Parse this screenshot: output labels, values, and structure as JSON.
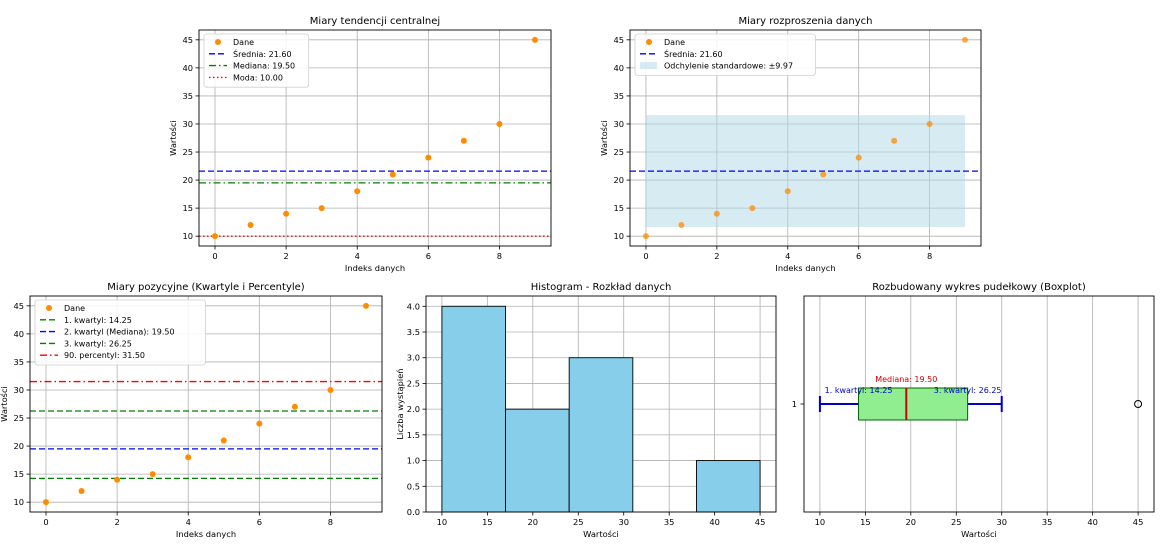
{
  "colors": {
    "data_point": "#ff8c00",
    "mean": "#0000ff",
    "median": "#008000",
    "mode": "#ff0000",
    "quartile": "#008000",
    "percentile": "#ff0000",
    "std_band": "#add8e6",
    "hist_bar": "#87ceeb",
    "box_fill": "#90ee90",
    "box_edge": "#0000cd",
    "grid": "#b0b0b0"
  },
  "chart_data": [
    {
      "id": "central",
      "type": "scatter",
      "title": "Miary tendencji centralnej",
      "xlabel": "Indeks danych",
      "ylabel": "Wartości",
      "x": [
        0,
        1,
        2,
        3,
        4,
        5,
        6,
        7,
        8,
        9
      ],
      "y": [
        10,
        12,
        14,
        15,
        18,
        21,
        24,
        27,
        30,
        45
      ],
      "xlim": [
        -0.45,
        9.45
      ],
      "ylim": [
        8.25,
        46.75
      ],
      "xticks": [
        0,
        2,
        4,
        6,
        8
      ],
      "yticks": [
        10,
        15,
        20,
        25,
        30,
        35,
        40,
        45
      ],
      "grid": true,
      "legend_position": "upper-left",
      "series_label": "Dane",
      "hlines": [
        {
          "label": "Średnia: 21.60",
          "value": 21.6,
          "color": "#0000ff",
          "dash": "dashed"
        },
        {
          "label": "Mediana: 19.50",
          "value": 19.5,
          "color": "#008000",
          "dash": "dashdot"
        },
        {
          "label": "Moda: 10.00",
          "value": 10.0,
          "color": "#ff0000",
          "dash": "dotted"
        }
      ]
    },
    {
      "id": "dispersion",
      "type": "scatter",
      "title": "Miary rozproszenia danych",
      "xlabel": "Indeks danych",
      "ylabel": "Wartości",
      "x": [
        0,
        1,
        2,
        3,
        4,
        5,
        6,
        7,
        8,
        9
      ],
      "y": [
        10,
        12,
        14,
        15,
        18,
        21,
        24,
        27,
        30,
        45
      ],
      "xlim": [
        -0.45,
        9.45
      ],
      "ylim": [
        8.25,
        46.75
      ],
      "xticks": [
        0,
        2,
        4,
        6,
        8
      ],
      "yticks": [
        10,
        15,
        20,
        25,
        30,
        35,
        40,
        45
      ],
      "grid": true,
      "legend_position": "upper-left",
      "series_label": "Dane",
      "hlines": [
        {
          "label": "Średnia: 21.60",
          "value": 21.6,
          "color": "#0000ff",
          "dash": "dashed"
        }
      ],
      "band": {
        "label": "Odchylenie standardowe: ±9.97",
        "low": 11.63,
        "high": 31.57,
        "x_from": 0,
        "x_to": 9
      }
    },
    {
      "id": "positional",
      "type": "scatter",
      "title": "Miary pozycyjne (Kwartyle i Percentyle)",
      "xlabel": "Indeks danych",
      "ylabel": "Wartości",
      "x": [
        0,
        1,
        2,
        3,
        4,
        5,
        6,
        7,
        8,
        9
      ],
      "y": [
        10,
        12,
        14,
        15,
        18,
        21,
        24,
        27,
        30,
        45
      ],
      "xlim": [
        -0.45,
        9.45
      ],
      "ylim": [
        8.25,
        46.75
      ],
      "xticks": [
        0,
        2,
        4,
        6,
        8
      ],
      "yticks": [
        10,
        15,
        20,
        25,
        30,
        35,
        40,
        45
      ],
      "grid": true,
      "legend_position": "upper-left",
      "series_label": "Dane",
      "hlines": [
        {
          "label": "1. kwartyl: 14.25",
          "value": 14.25,
          "color": "#008000",
          "dash": "dashed"
        },
        {
          "label": "2. kwartyl (Mediana): 19.50",
          "value": 19.5,
          "color": "#0000ff",
          "dash": "dashed"
        },
        {
          "label": "3. kwartyl: 26.25",
          "value": 26.25,
          "color": "#008000",
          "dash": "dashed"
        },
        {
          "label": "90. percentyl: 31.50",
          "value": 31.5,
          "color": "#ff0000",
          "dash": "dashdot"
        }
      ]
    },
    {
      "id": "histogram",
      "type": "bar",
      "title": "Histogram - Rozkład danych",
      "xlabel": "Wartości",
      "ylabel": "Liczba wystąpień",
      "bins": [
        [
          10,
          17,
          4
        ],
        [
          17,
          24,
          2
        ],
        [
          24,
          31,
          3
        ],
        [
          31,
          38,
          0
        ],
        [
          38,
          45,
          1
        ]
      ],
      "xlim": [
        8.25,
        46.75
      ],
      "ylim": [
        0,
        4.2
      ],
      "xticks": [
        10,
        15,
        20,
        25,
        30,
        35,
        40,
        45
      ],
      "yticks": [
        0.0,
        0.5,
        1.0,
        1.5,
        2.0,
        2.5,
        3.0,
        3.5,
        4.0
      ],
      "grid": true
    },
    {
      "id": "boxplot",
      "type": "boxplot",
      "title": "Rozbudowany wykres pudełkowy (Boxplot)",
      "xlabel": "Wartości",
      "ytick_label": "1",
      "min": 10,
      "q1": 14.25,
      "median": 19.5,
      "q3": 26.25,
      "max": 30,
      "outliers": [
        45
      ],
      "annotations": {
        "median": "Mediana: 19.50",
        "q1": "1. kwartyl: 14.25",
        "q3": "3. kwartyl: 26.25"
      },
      "xlim": [
        8.25,
        46.75
      ],
      "xticks": [
        10,
        15,
        20,
        25,
        30,
        35,
        40,
        45
      ],
      "grid": true
    }
  ]
}
